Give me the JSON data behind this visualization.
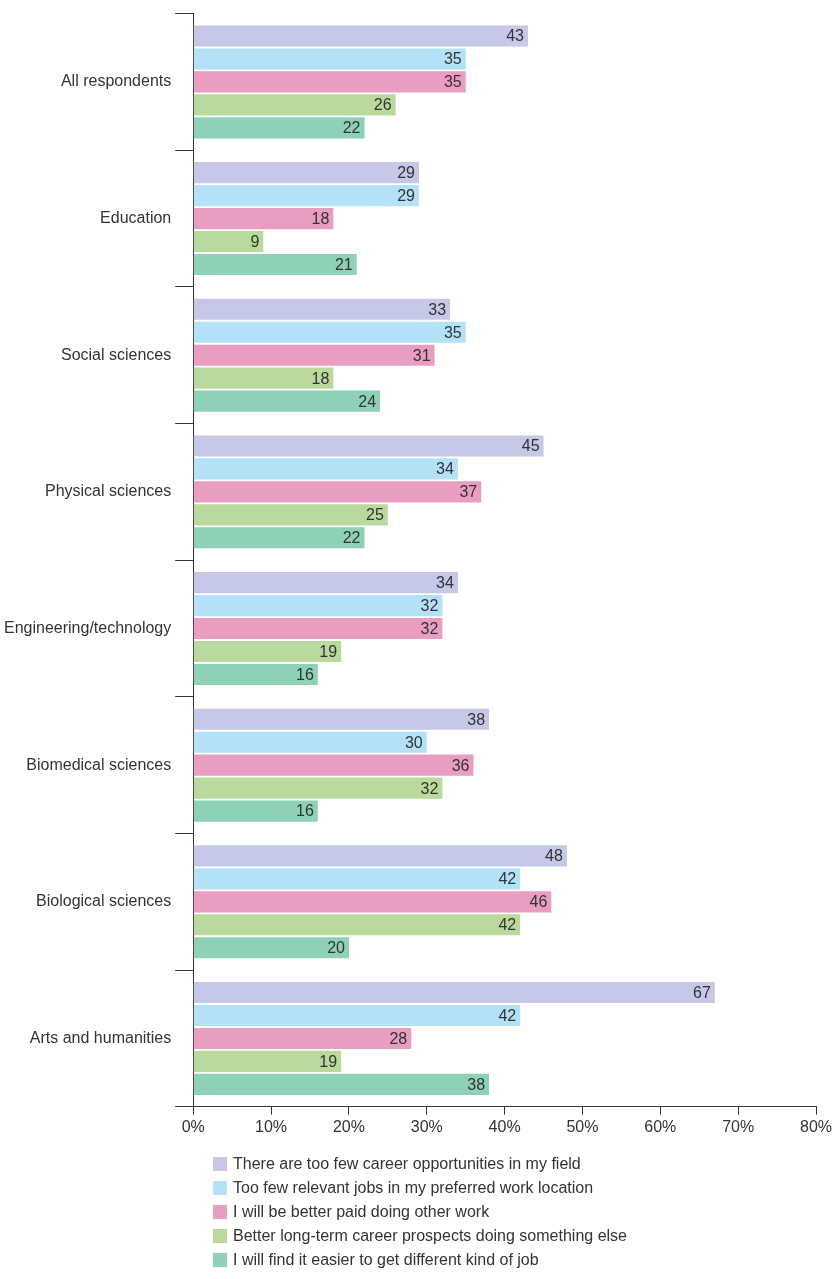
{
  "chart_data": {
    "type": "bar",
    "orientation": "horizontal",
    "categories": [
      "All respondents",
      "Education",
      "Social sciences",
      "Physical sciences",
      "Engineering/technology",
      "Biomedical sciences",
      "Biological sciences",
      "Arts and humanities"
    ],
    "series": [
      {
        "name": "There are too few career opportunities in my field",
        "color": "#c5c8e6",
        "values": [
          43,
          29,
          33,
          45,
          34,
          38,
          48,
          67
        ]
      },
      {
        "name": "Too few relevant jobs in my preferred work location",
        "color": "#b3e1f8",
        "values": [
          35,
          29,
          35,
          34,
          32,
          30,
          42,
          42
        ]
      },
      {
        "name": "I will be better paid doing other work",
        "color": "#e99dc2",
        "values": [
          35,
          18,
          31,
          37,
          32,
          36,
          46,
          28
        ]
      },
      {
        "name": "Better long-term career prospects doing something else",
        "color": "#b9da9c",
        "values": [
          26,
          9,
          18,
          25,
          19,
          32,
          42,
          19
        ]
      },
      {
        "name": "I will find it easier to get different kind of job",
        "color": "#8dd1b7",
        "values": [
          22,
          21,
          24,
          22,
          16,
          16,
          20,
          38
        ]
      }
    ],
    "xlim": [
      0,
      80
    ],
    "xticks": [
      {
        "value": 0,
        "label": "0%"
      },
      {
        "value": 10,
        "label": "10%"
      },
      {
        "value": 20,
        "label": "20%"
      },
      {
        "value": 30,
        "label": "30%"
      },
      {
        "value": 40,
        "label": "40%"
      },
      {
        "value": 50,
        "label": "50%"
      },
      {
        "value": 60,
        "label": "60%"
      },
      {
        "value": 70,
        "label": "70%"
      },
      {
        "value": 80,
        "label": "80%"
      }
    ],
    "data_labels": true,
    "grid": false,
    "legend": "bottom"
  }
}
